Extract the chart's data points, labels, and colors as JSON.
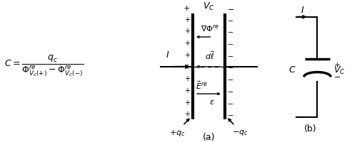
{
  "fig_width": 5.0,
  "fig_height": 2.01,
  "dpi": 100,
  "bg_color": "#ffffff"
}
